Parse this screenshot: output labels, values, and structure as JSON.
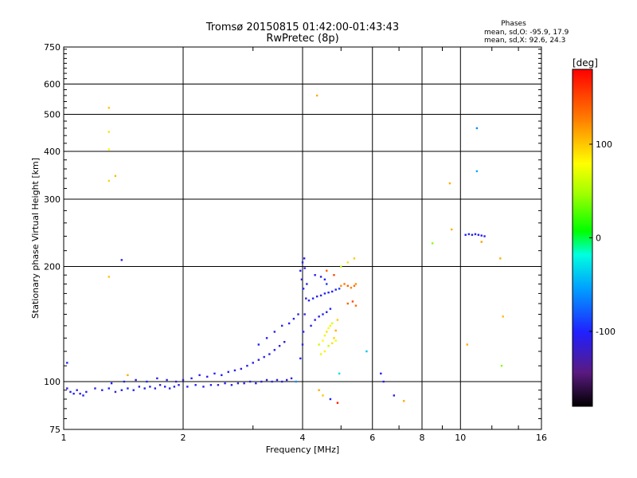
{
  "chart_data": {
    "type": "scatter",
    "title": "Tromsø 20150815 01:42:00-01:43:43",
    "subtitle": "RwPretec (8p)",
    "xlabel": "Frequency [MHz]",
    "ylabel": "Stationary phase Virtual Height [km]",
    "x_scale": "log2",
    "y_scale": "log",
    "xlim": [
      1,
      16
    ],
    "ylim": [
      75,
      750
    ],
    "xticks": [
      1,
      2,
      4,
      6,
      8,
      10,
      16
    ],
    "xtick_labels": [
      "1",
      "2",
      "4",
      "6",
      "8",
      "10",
      "16"
    ],
    "yticks": [
      75,
      100,
      200,
      300,
      400,
      500,
      600,
      750
    ],
    "ytick_labels": [
      "75",
      "100",
      "200",
      "300",
      "400",
      "500",
      "600",
      "750"
    ],
    "grid": true,
    "phase_box": {
      "heading": "Phases",
      "line_o": "mean, sd,O:  -95.9, 17.9",
      "line_x": "mean, sd,X:   92.6, 24.3"
    },
    "colorbar": {
      "label": "[deg]",
      "range": [
        -180,
        180
      ],
      "ticks": [
        100,
        0,
        -100
      ],
      "tick_labels": [
        "100",
        "0",
        "-100"
      ]
    },
    "points": [
      {
        "x": 1.02,
        "y": 96,
        "phase": -110
      },
      {
        "x": 1.04,
        "y": 94,
        "phase": -105
      },
      {
        "x": 1.06,
        "y": 93,
        "phase": -100
      },
      {
        "x": 1.08,
        "y": 95,
        "phase": -108
      },
      {
        "x": 1.1,
        "y": 93,
        "phase": -112
      },
      {
        "x": 1.12,
        "y": 92,
        "phase": -104
      },
      {
        "x": 1.14,
        "y": 94,
        "phase": -100
      },
      {
        "x": 1.02,
        "y": 112,
        "phase": -98
      },
      {
        "x": 1.2,
        "y": 96,
        "phase": -110
      },
      {
        "x": 1.25,
        "y": 95,
        "phase": -108
      },
      {
        "x": 1.3,
        "y": 96,
        "phase": -100
      },
      {
        "x": 1.35,
        "y": 94,
        "phase": -115
      },
      {
        "x": 1.4,
        "y": 95,
        "phase": -105
      },
      {
        "x": 1.45,
        "y": 96,
        "phase": -98
      },
      {
        "x": 1.5,
        "y": 95,
        "phase": -102
      },
      {
        "x": 1.55,
        "y": 97,
        "phase": -110
      },
      {
        "x": 1.6,
        "y": 96,
        "phase": -105
      },
      {
        "x": 1.65,
        "y": 97,
        "phase": -100
      },
      {
        "x": 1.7,
        "y": 96,
        "phase": -108
      },
      {
        "x": 1.75,
        "y": 98,
        "phase": -112
      },
      {
        "x": 1.8,
        "y": 97,
        "phase": -100
      },
      {
        "x": 1.85,
        "y": 96,
        "phase": -104
      },
      {
        "x": 1.9,
        "y": 97,
        "phase": -98
      },
      {
        "x": 1.95,
        "y": 98,
        "phase": -110
      },
      {
        "x": 1.32,
        "y": 99,
        "phase": -100
      },
      {
        "x": 1.42,
        "y": 100,
        "phase": -106
      },
      {
        "x": 1.52,
        "y": 101,
        "phase": -112
      },
      {
        "x": 1.62,
        "y": 100,
        "phase": -98
      },
      {
        "x": 1.72,
        "y": 102,
        "phase": -104
      },
      {
        "x": 1.82,
        "y": 101,
        "phase": -100
      },
      {
        "x": 1.92,
        "y": 100,
        "phase": -108
      },
      {
        "x": 2.0,
        "y": 101,
        "phase": -110
      },
      {
        "x": 2.05,
        "y": 97,
        "phase": -102
      },
      {
        "x": 2.15,
        "y": 98,
        "phase": -100
      },
      {
        "x": 2.25,
        "y": 97,
        "phase": -108
      },
      {
        "x": 2.35,
        "y": 98,
        "phase": -104
      },
      {
        "x": 2.45,
        "y": 98,
        "phase": -110
      },
      {
        "x": 2.55,
        "y": 99,
        "phase": -100
      },
      {
        "x": 2.65,
        "y": 98,
        "phase": -106
      },
      {
        "x": 2.75,
        "y": 99,
        "phase": -112
      },
      {
        "x": 2.1,
        "y": 102,
        "phase": -100
      },
      {
        "x": 2.2,
        "y": 104,
        "phase": -106
      },
      {
        "x": 2.3,
        "y": 103,
        "phase": -110
      },
      {
        "x": 2.4,
        "y": 105,
        "phase": -98
      },
      {
        "x": 2.5,
        "y": 104,
        "phase": -104
      },
      {
        "x": 2.6,
        "y": 106,
        "phase": -100
      },
      {
        "x": 2.7,
        "y": 107,
        "phase": -108
      },
      {
        "x": 2.8,
        "y": 108,
        "phase": -112
      },
      {
        "x": 2.9,
        "y": 110,
        "phase": -100
      },
      {
        "x": 3.0,
        "y": 112,
        "phase": -106
      },
      {
        "x": 3.1,
        "y": 114,
        "phase": -110
      },
      {
        "x": 3.2,
        "y": 116,
        "phase": -98
      },
      {
        "x": 3.3,
        "y": 118,
        "phase": -104
      },
      {
        "x": 3.4,
        "y": 121,
        "phase": -100
      },
      {
        "x": 3.5,
        "y": 124,
        "phase": -108
      },
      {
        "x": 3.6,
        "y": 127,
        "phase": -112
      },
      {
        "x": 3.1,
        "y": 125,
        "phase": -100
      },
      {
        "x": 3.25,
        "y": 130,
        "phase": -106
      },
      {
        "x": 3.4,
        "y": 135,
        "phase": -110
      },
      {
        "x": 3.55,
        "y": 140,
        "phase": -98
      },
      {
        "x": 3.7,
        "y": 142,
        "phase": -104
      },
      {
        "x": 3.8,
        "y": 146,
        "phase": -100
      },
      {
        "x": 3.9,
        "y": 150,
        "phase": -108
      },
      {
        "x": 2.85,
        "y": 99,
        "phase": -104
      },
      {
        "x": 2.95,
        "y": 100,
        "phase": -110
      },
      {
        "x": 3.05,
        "y": 99,
        "phase": -100
      },
      {
        "x": 3.15,
        "y": 100,
        "phase": -106
      },
      {
        "x": 3.25,
        "y": 101,
        "phase": -112
      },
      {
        "x": 3.35,
        "y": 100,
        "phase": -98
      },
      {
        "x": 3.45,
        "y": 101,
        "phase": -104
      },
      {
        "x": 3.55,
        "y": 100,
        "phase": -100
      },
      {
        "x": 3.65,
        "y": 101,
        "phase": -108
      },
      {
        "x": 3.75,
        "y": 102,
        "phase": -110
      },
      {
        "x": 3.85,
        "y": 100,
        "phase": -60
      },
      {
        "x": 3.95,
        "y": 115,
        "phase": -105
      },
      {
        "x": 4.0,
        "y": 125,
        "phase": -110
      },
      {
        "x": 4.02,
        "y": 135,
        "phase": -100
      },
      {
        "x": 4.05,
        "y": 150,
        "phase": -106
      },
      {
        "x": 4.08,
        "y": 165,
        "phase": -112
      },
      {
        "x": 4.1,
        "y": 180,
        "phase": -98
      },
      {
        "x": 3.95,
        "y": 195,
        "phase": -104
      },
      {
        "x": 4.0,
        "y": 205,
        "phase": -100
      },
      {
        "x": 4.05,
        "y": 198,
        "phase": -108
      },
      {
        "x": 3.98,
        "y": 185,
        "phase": -110
      },
      {
        "x": 4.02,
        "y": 175,
        "phase": -100
      },
      {
        "x": 4.04,
        "y": 210,
        "phase": -106
      },
      {
        "x": 4.15,
        "y": 163,
        "phase": -104
      },
      {
        "x": 4.25,
        "y": 165,
        "phase": -100
      },
      {
        "x": 4.35,
        "y": 167,
        "phase": -108
      },
      {
        "x": 4.45,
        "y": 168,
        "phase": -110
      },
      {
        "x": 4.55,
        "y": 170,
        "phase": -100
      },
      {
        "x": 4.65,
        "y": 171,
        "phase": -98
      },
      {
        "x": 4.75,
        "y": 172,
        "phase": -104
      },
      {
        "x": 4.85,
        "y": 174,
        "phase": -100
      },
      {
        "x": 4.95,
        "y": 175,
        "phase": -90
      },
      {
        "x": 4.2,
        "y": 140,
        "phase": -100
      },
      {
        "x": 4.3,
        "y": 145,
        "phase": -106
      },
      {
        "x": 4.4,
        "y": 148,
        "phase": -110
      },
      {
        "x": 4.5,
        "y": 150,
        "phase": -98
      },
      {
        "x": 4.6,
        "y": 152,
        "phase": -104
      },
      {
        "x": 4.7,
        "y": 155,
        "phase": -100
      },
      {
        "x": 4.3,
        "y": 190,
        "phase": -104
      },
      {
        "x": 4.45,
        "y": 188,
        "phase": -110
      },
      {
        "x": 4.55,
        "y": 185,
        "phase": -100
      },
      {
        "x": 4.6,
        "y": 180,
        "phase": -90
      },
      {
        "x": 4.4,
        "y": 125,
        "phase": 60
      },
      {
        "x": 4.5,
        "y": 128,
        "phase": 80
      },
      {
        "x": 4.55,
        "y": 132,
        "phase": 70
      },
      {
        "x": 4.6,
        "y": 135,
        "phase": 90
      },
      {
        "x": 4.65,
        "y": 138,
        "phase": 75
      },
      {
        "x": 4.7,
        "y": 140,
        "phase": 85
      },
      {
        "x": 4.75,
        "y": 142,
        "phase": 65
      },
      {
        "x": 4.8,
        "y": 130,
        "phase": 95
      },
      {
        "x": 4.85,
        "y": 136,
        "phase": 110
      },
      {
        "x": 4.9,
        "y": 145,
        "phase": 100
      },
      {
        "x": 4.45,
        "y": 118,
        "phase": 70
      },
      {
        "x": 4.55,
        "y": 120,
        "phase": 85
      },
      {
        "x": 4.65,
        "y": 124,
        "phase": 60
      },
      {
        "x": 4.75,
        "y": 126,
        "phase": 90
      },
      {
        "x": 4.85,
        "y": 128,
        "phase": 75
      },
      {
        "x": 5.0,
        "y": 178,
        "phase": 120
      },
      {
        "x": 5.1,
        "y": 180,
        "phase": 130
      },
      {
        "x": 5.2,
        "y": 178,
        "phase": 140
      },
      {
        "x": 5.3,
        "y": 176,
        "phase": 125
      },
      {
        "x": 5.4,
        "y": 178,
        "phase": 135
      },
      {
        "x": 5.45,
        "y": 180,
        "phase": 120
      },
      {
        "x": 5.2,
        "y": 160,
        "phase": 140
      },
      {
        "x": 5.35,
        "y": 162,
        "phase": 150
      },
      {
        "x": 5.45,
        "y": 158,
        "phase": 135
      },
      {
        "x": 4.6,
        "y": 195,
        "phase": 140
      },
      {
        "x": 4.8,
        "y": 190,
        "phase": 150
      },
      {
        "x": 5.0,
        "y": 200,
        "phase": 60
      },
      {
        "x": 5.2,
        "y": 205,
        "phase": 90
      },
      {
        "x": 5.4,
        "y": 210,
        "phase": 100
      },
      {
        "x": 4.4,
        "y": 95,
        "phase": 110
      },
      {
        "x": 4.5,
        "y": 92,
        "phase": 100
      },
      {
        "x": 4.7,
        "y": 90,
        "phase": -100
      },
      {
        "x": 4.9,
        "y": 88,
        "phase": 170
      },
      {
        "x": 4.95,
        "y": 105,
        "phase": -30
      },
      {
        "x": 5.8,
        "y": 120,
        "phase": -40
      },
      {
        "x": 6.3,
        "y": 105,
        "phase": -100
      },
      {
        "x": 6.8,
        "y": 92,
        "phase": -110
      },
      {
        "x": 7.2,
        "y": 89,
        "phase": 110
      },
      {
        "x": 6.4,
        "y": 100,
        "phase": -100
      },
      {
        "x": 4.35,
        "y": 560,
        "phase": 110
      },
      {
        "x": 1.3,
        "y": 520,
        "phase": 100
      },
      {
        "x": 1.3,
        "y": 450,
        "phase": 90
      },
      {
        "x": 1.3,
        "y": 405,
        "phase": 80
      },
      {
        "x": 1.3,
        "y": 335,
        "phase": 95
      },
      {
        "x": 1.35,
        "y": 345,
        "phase": 105
      },
      {
        "x": 1.3,
        "y": 188,
        "phase": 100
      },
      {
        "x": 1.4,
        "y": 208,
        "phase": -110
      },
      {
        "x": 1.45,
        "y": 104,
        "phase": 110
      },
      {
        "x": 8.5,
        "y": 230,
        "phase": 40
      },
      {
        "x": 9.5,
        "y": 250,
        "phase": 110
      },
      {
        "x": 9.4,
        "y": 330,
        "phase": 110
      },
      {
        "x": 10.3,
        "y": 242,
        "phase": -100
      },
      {
        "x": 10.5,
        "y": 243,
        "phase": -105
      },
      {
        "x": 10.7,
        "y": 242,
        "phase": -110
      },
      {
        "x": 10.9,
        "y": 243,
        "phase": -100
      },
      {
        "x": 11.1,
        "y": 242,
        "phase": -108
      },
      {
        "x": 11.3,
        "y": 241,
        "phase": -104
      },
      {
        "x": 11.5,
        "y": 240,
        "phase": -110
      },
      {
        "x": 11.0,
        "y": 460,
        "phase": -60
      },
      {
        "x": 11.0,
        "y": 355,
        "phase": -50
      },
      {
        "x": 12.6,
        "y": 210,
        "phase": 110
      },
      {
        "x": 12.8,
        "y": 148,
        "phase": 105
      },
      {
        "x": 12.7,
        "y": 110,
        "phase": 40
      },
      {
        "x": 10.4,
        "y": 125,
        "phase": 110
      },
      {
        "x": 11.3,
        "y": 232,
        "phase": 115
      }
    ]
  }
}
